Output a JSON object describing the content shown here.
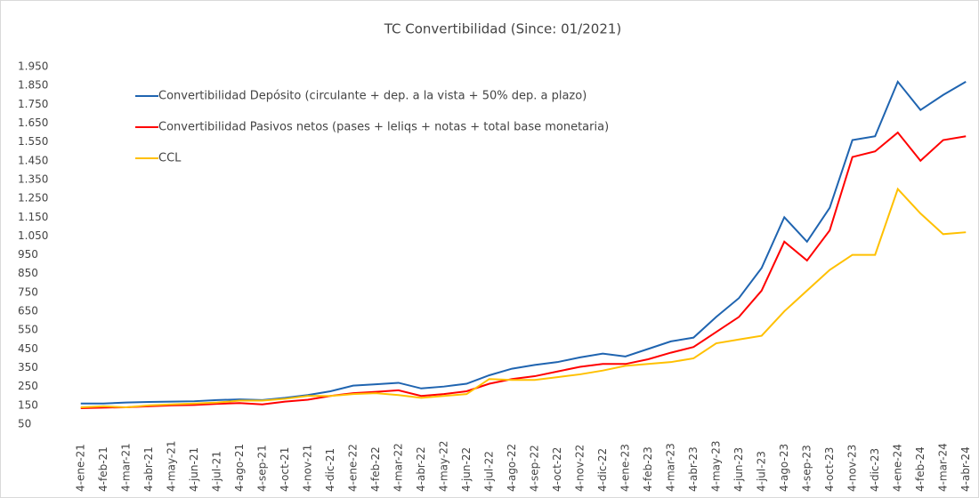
{
  "chart_data": {
    "type": "line",
    "title": "TC Convertibilidad (Since: 01/2021)",
    "categories": [
      "4-ene-21",
      "4-feb-21",
      "4-mar-21",
      "4-abr-21",
      "4-may-21",
      "4-jun-21",
      "4-jul-21",
      "4-ago-21",
      "4-sep-21",
      "4-oct-21",
      "4-nov-21",
      "4-dic-21",
      "4-ene-22",
      "4-feb-22",
      "4-mar-22",
      "4-abr-22",
      "4-may-22",
      "4-jun-22",
      "4-jul-22",
      "4-ago-22",
      "4-sep-22",
      "4-oct-22",
      "4-nov-22",
      "4-dic-22",
      "4-ene-23",
      "4-feb-23",
      "4-mar-23",
      "4-abr-23",
      "4-may-23",
      "4-jun-23",
      "4-jul-23",
      "4-ago-23",
      "4-sep-23",
      "4-oct-23",
      "4-nov-23",
      "4-dic-23",
      "4-ene-24",
      "4-feb-24",
      "4-mar-24",
      "4-abr-24"
    ],
    "series": [
      {
        "name": "Convertibilidad Depósito (circulante + dep. a la vista + 50% dep. a plazo)",
        "color": "#1f64b0",
        "values": [
          160,
          160,
          165,
          168,
          170,
          172,
          178,
          182,
          178,
          190,
          205,
          225,
          255,
          262,
          270,
          240,
          250,
          265,
          310,
          345,
          365,
          380,
          405,
          425,
          410,
          450,
          490,
          510,
          620,
          720,
          880,
          1150,
          1020,
          1200,
          1560,
          1580,
          1870,
          1720,
          1800,
          1870
        ]
      },
      {
        "name": "Convertibilidad Pasivos netos (pases + leliqs + notas + total base monetaria)",
        "color": "#ff0000",
        "values": [
          135,
          138,
          140,
          145,
          150,
          152,
          158,
          162,
          155,
          170,
          180,
          200,
          215,
          222,
          230,
          200,
          210,
          225,
          265,
          290,
          305,
          330,
          355,
          370,
          370,
          395,
          430,
          460,
          540,
          620,
          760,
          1020,
          920,
          1080,
          1470,
          1500,
          1600,
          1450,
          1560,
          1580
        ]
      },
      {
        "name": "CCL",
        "color": "#ffc000",
        "values": [
          140,
          145,
          140,
          150,
          155,
          160,
          165,
          175,
          175,
          185,
          200,
          200,
          210,
          215,
          205,
          190,
          200,
          210,
          290,
          285,
          285,
          300,
          315,
          335,
          360,
          370,
          380,
          400,
          480,
          500,
          520,
          650,
          760,
          870,
          950,
          950,
          1300,
          1170,
          1060,
          1070
        ]
      }
    ],
    "ylim": [
      50,
      1950
    ],
    "yticks": [
      50,
      150,
      250,
      350,
      450,
      550,
      650,
      750,
      850,
      950,
      {
        "value": 1050,
        "label": "1.050"
      },
      {
        "value": 1150,
        "label": "1.150"
      },
      {
        "value": 1250,
        "label": "1.250"
      },
      {
        "value": 1350,
        "label": "1.350"
      },
      {
        "value": 1450,
        "label": "1.450"
      },
      {
        "value": 1550,
        "label": "1.550"
      },
      {
        "value": 1650,
        "label": "1.650"
      },
      {
        "value": 1750,
        "label": "1.750"
      },
      {
        "value": 1850,
        "label": "1.850"
      },
      {
        "value": 1950,
        "label": "1.950"
      }
    ],
    "grid": false,
    "legend": "upper left"
  }
}
